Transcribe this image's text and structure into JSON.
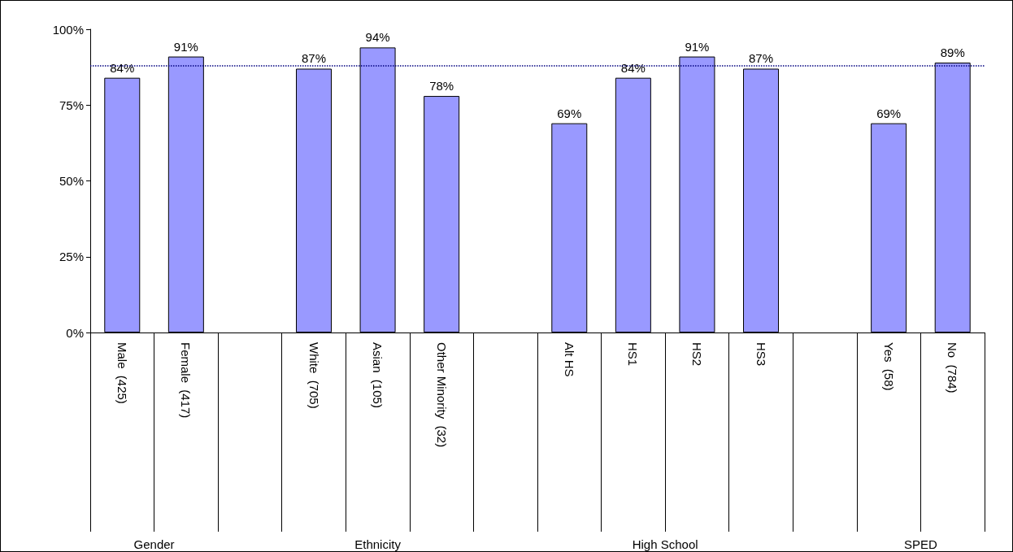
{
  "chart_data": {
    "type": "bar",
    "categories": [
      "Male  (425)",
      "Female  (417)",
      null,
      "White  (705)",
      "Asian  (105)",
      "Other Minority  (32)",
      null,
      "Alt HS",
      "HS1",
      "HS2",
      "HS3",
      null,
      "Yes  (58)",
      "No  (784)"
    ],
    "values": [
      84,
      91,
      null,
      87,
      94,
      78,
      null,
      69,
      84,
      91,
      87,
      null,
      69,
      89
    ],
    "value_labels": [
      "84%",
      "91%",
      null,
      "87%",
      "94%",
      "78%",
      null,
      "69%",
      "84%",
      "91%",
      "87%",
      null,
      "69%",
      "89%"
    ],
    "color": "#9999ff",
    "ylim": [
      0,
      100
    ],
    "yticks": [
      {
        "value": 0,
        "label": "0%"
      },
      {
        "value": 25,
        "label": "25%"
      },
      {
        "value": 50,
        "label": "50%"
      },
      {
        "value": 75,
        "label": "75%"
      },
      {
        "value": 100,
        "label": "100%"
      }
    ],
    "grid": false,
    "ref_lines": [
      {
        "axis": "y",
        "value": 88,
        "color": "#000080",
        "line_style": "dotted"
      }
    ],
    "annotations": [
      "Gender",
      "Ethnicity",
      "High School",
      "SPED"
    ]
  }
}
